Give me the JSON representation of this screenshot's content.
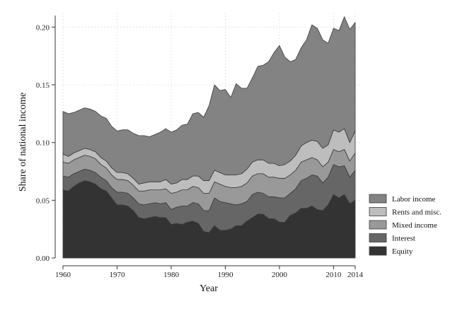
{
  "chart_data": {
    "type": "area",
    "stacked": true,
    "title": "",
    "xlabel": "Year",
    "ylabel": "Share of  national income",
    "xlim": [
      1960,
      2014
    ],
    "ylim": [
      0,
      0.21
    ],
    "xticks": [
      "1960",
      "1970",
      "1980",
      "1990",
      "2000",
      "2010",
      "2014"
    ],
    "yticks": [
      "0.00",
      "0.05",
      "0.10",
      "0.15",
      "0.20"
    ],
    "grid": true,
    "legend_position": "right-bottom",
    "x": [
      1960,
      1961,
      1962,
      1963,
      1964,
      1965,
      1966,
      1967,
      1968,
      1969,
      1970,
      1971,
      1972,
      1973,
      1974,
      1975,
      1976,
      1977,
      1978,
      1979,
      1980,
      1981,
      1982,
      1983,
      1984,
      1985,
      1986,
      1987,
      1988,
      1989,
      1990,
      1991,
      1992,
      1993,
      1994,
      1995,
      1996,
      1997,
      1998,
      1999,
      2000,
      2001,
      2002,
      2003,
      2004,
      2005,
      2006,
      2007,
      2008,
      2009,
      2010,
      2011,
      2012,
      2013,
      2014
    ],
    "series": [
      {
        "name": "Equity",
        "color": "#333333",
        "values": [
          0.059,
          0.058,
          0.062,
          0.065,
          0.067,
          0.066,
          0.064,
          0.06,
          0.058,
          0.052,
          0.046,
          0.046,
          0.045,
          0.041,
          0.035,
          0.034,
          0.035,
          0.036,
          0.035,
          0.035,
          0.029,
          0.03,
          0.029,
          0.031,
          0.032,
          0.03,
          0.023,
          0.022,
          0.028,
          0.024,
          0.024,
          0.025,
          0.028,
          0.028,
          0.032,
          0.035,
          0.038,
          0.038,
          0.034,
          0.034,
          0.031,
          0.031,
          0.037,
          0.039,
          0.043,
          0.043,
          0.045,
          0.042,
          0.041,
          0.046,
          0.055,
          0.052,
          0.055,
          0.047,
          0.05
        ]
      },
      {
        "name": "Interest",
        "color": "#666666",
        "values": [
          0.012,
          0.012,
          0.011,
          0.01,
          0.01,
          0.01,
          0.01,
          0.01,
          0.009,
          0.009,
          0.011,
          0.011,
          0.011,
          0.011,
          0.012,
          0.012,
          0.012,
          0.012,
          0.012,
          0.013,
          0.013,
          0.014,
          0.016,
          0.014,
          0.016,
          0.017,
          0.018,
          0.019,
          0.024,
          0.025,
          0.024,
          0.022,
          0.018,
          0.019,
          0.017,
          0.02,
          0.019,
          0.018,
          0.019,
          0.019,
          0.021,
          0.021,
          0.019,
          0.021,
          0.024,
          0.026,
          0.027,
          0.029,
          0.024,
          0.024,
          0.026,
          0.027,
          0.025,
          0.023,
          0.026
        ]
      },
      {
        "name": "Mixed income",
        "color": "#999999",
        "values": [
          0.012,
          0.012,
          0.012,
          0.012,
          0.012,
          0.012,
          0.012,
          0.011,
          0.011,
          0.011,
          0.011,
          0.011,
          0.011,
          0.011,
          0.011,
          0.012,
          0.012,
          0.011,
          0.012,
          0.012,
          0.014,
          0.013,
          0.014,
          0.014,
          0.014,
          0.014,
          0.015,
          0.015,
          0.014,
          0.015,
          0.014,
          0.014,
          0.015,
          0.015,
          0.016,
          0.016,
          0.016,
          0.017,
          0.017,
          0.017,
          0.017,
          0.017,
          0.016,
          0.016,
          0.016,
          0.016,
          0.015,
          0.014,
          0.014,
          0.013,
          0.013,
          0.013,
          0.014,
          0.014,
          0.015
        ]
      },
      {
        "name": "Rents and misc.",
        "color": "#bdbdbd",
        "values": [
          0.007,
          0.006,
          0.006,
          0.006,
          0.006,
          0.006,
          0.006,
          0.006,
          0.006,
          0.006,
          0.006,
          0.006,
          0.006,
          0.006,
          0.006,
          0.007,
          0.007,
          0.007,
          0.007,
          0.008,
          0.008,
          0.008,
          0.009,
          0.009,
          0.009,
          0.01,
          0.011,
          0.011,
          0.01,
          0.01,
          0.01,
          0.011,
          0.011,
          0.011,
          0.012,
          0.012,
          0.012,
          0.012,
          0.012,
          0.012,
          0.011,
          0.012,
          0.012,
          0.013,
          0.014,
          0.015,
          0.015,
          0.016,
          0.016,
          0.015,
          0.017,
          0.017,
          0.018,
          0.016,
          0.019
        ]
      },
      {
        "name": "Labor income",
        "color": "#838383",
        "values": [
          0.037,
          0.037,
          0.035,
          0.035,
          0.035,
          0.035,
          0.035,
          0.036,
          0.037,
          0.036,
          0.036,
          0.037,
          0.038,
          0.039,
          0.042,
          0.041,
          0.039,
          0.041,
          0.043,
          0.044,
          0.045,
          0.046,
          0.047,
          0.048,
          0.054,
          0.055,
          0.055,
          0.065,
          0.074,
          0.071,
          0.074,
          0.067,
          0.079,
          0.074,
          0.07,
          0.073,
          0.081,
          0.082,
          0.088,
          0.096,
          0.104,
          0.093,
          0.086,
          0.083,
          0.085,
          0.089,
          0.1,
          0.098,
          0.094,
          0.088,
          0.088,
          0.088,
          0.097,
          0.098,
          0.094
        ]
      }
    ],
    "legend_order": [
      "Labor income",
      "Rents and misc.",
      "Mixed income",
      "Interest",
      "Equity"
    ]
  }
}
